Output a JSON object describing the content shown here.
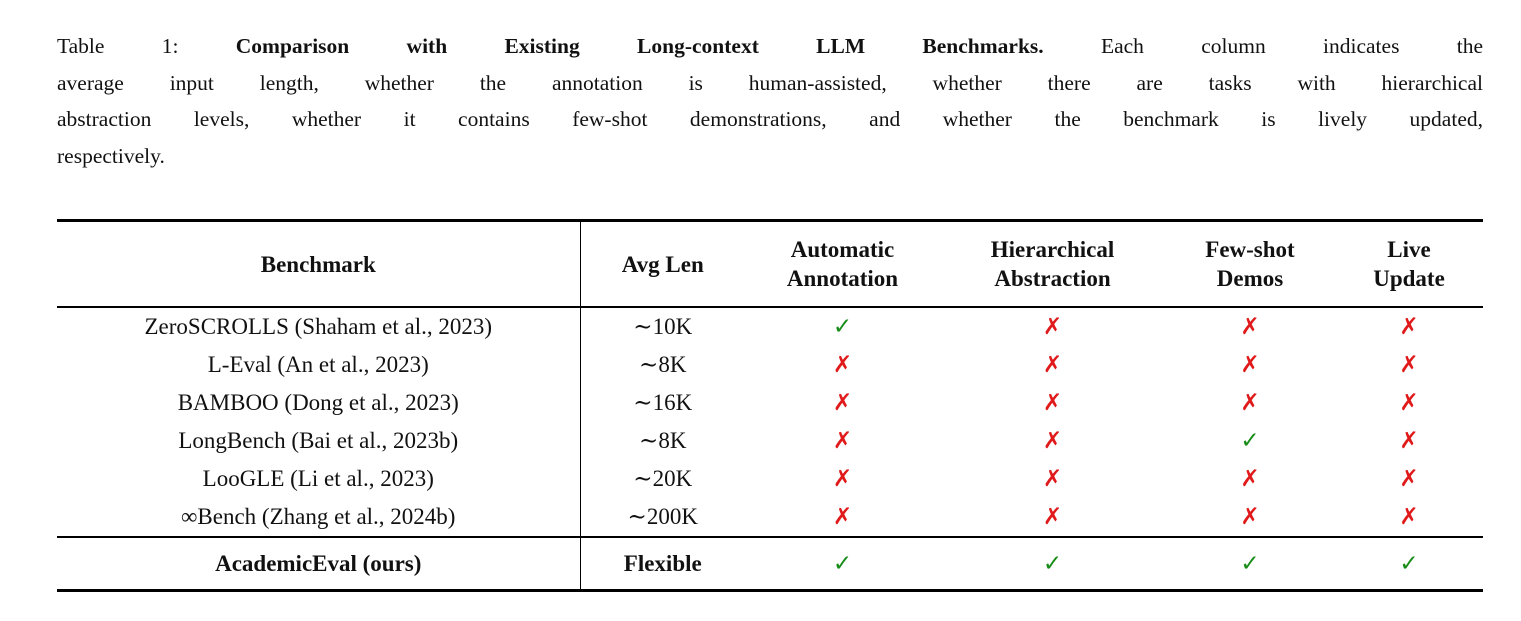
{
  "caption": {
    "line1_prefix": "Table 1:",
    "line1_bold": "Comparison with Existing Long-context LLM Benchmarks.",
    "line1_rest": "Each column indicates the",
    "line2": "average input length, whether the annotation is human-assisted, whether there are tasks with hierarchical",
    "line3": "abstraction levels, whether it contains few-shot demonstrations, and whether the benchmark is lively updated,",
    "line4": "respectively."
  },
  "table": {
    "headers": {
      "benchmark": "Benchmark",
      "avg_len": "Avg Len",
      "cols": [
        [
          "Automatic",
          "Annotation"
        ],
        [
          "Hierarchical",
          "Abstraction"
        ],
        [
          "Few-shot",
          "Demos"
        ],
        [
          "Live",
          "Update"
        ]
      ]
    },
    "rows": [
      {
        "benchmark": "ZeroSCROLLS (Shaham et al., 2023)",
        "avg_len": "∼10K",
        "marks": [
          "✓",
          "✗",
          "✗",
          "✗"
        ]
      },
      {
        "benchmark": "L-Eval (An et al., 2023)",
        "avg_len": "∼8K",
        "marks": [
          "✗",
          "✗",
          "✗",
          "✗"
        ]
      },
      {
        "benchmark": "BAMBOO (Dong et al., 2023)",
        "avg_len": "∼16K",
        "marks": [
          "✗",
          "✗",
          "✗",
          "✗"
        ]
      },
      {
        "benchmark": "LongBench (Bai et al., 2023b)",
        "avg_len": "∼8K",
        "marks": [
          "✗",
          "✗",
          "✓",
          "✗"
        ]
      },
      {
        "benchmark": "LooGLE (Li et al., 2023)",
        "avg_len": "∼20K",
        "marks": [
          "✗",
          "✗",
          "✗",
          "✗"
        ]
      },
      {
        "benchmark": "∞Bench (Zhang et al., 2024b)",
        "avg_len": "∼200K",
        "marks": [
          "✗",
          "✗",
          "✗",
          "✗"
        ]
      }
    ],
    "footer": {
      "benchmark": "AcademicEval (ours)",
      "avg_len": "Flexible",
      "marks": [
        "✓",
        "✓",
        "✓",
        "✓"
      ]
    }
  },
  "icons": {
    "check": "✓",
    "cross": "✗"
  },
  "colors": {
    "check": "#178c17",
    "cross": "#e01a1a"
  }
}
